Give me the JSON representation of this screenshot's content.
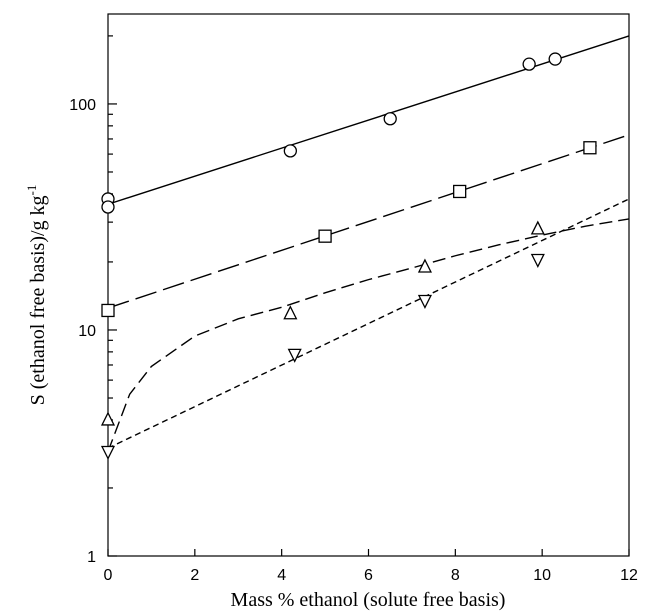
{
  "chart_data": {
    "type": "scatter",
    "title": "",
    "xlabel": "Mass % ethanol (solute free basis)",
    "ylabel": "S (ethanol free basis)/g kg",
    "ylabel_superscript": "-1",
    "xlim": [
      0,
      12
    ],
    "ylim": [
      1,
      250
    ],
    "yscale": "log",
    "grid": false,
    "legend": "none",
    "x_ticks": [
      "0",
      "2",
      "4",
      "6",
      "8",
      "10",
      "12"
    ],
    "y_ticks": [
      "1",
      "10",
      "100"
    ],
    "series": [
      {
        "marker": "circle",
        "line_style": "solid",
        "points": [
          [
            0,
            38
          ],
          [
            0,
            35
          ],
          [
            4.2,
            62
          ],
          [
            6.5,
            86
          ],
          [
            9.7,
            150
          ],
          [
            10.3,
            158
          ]
        ],
        "fit": [
          [
            0,
            36
          ],
          [
            12,
            200
          ]
        ]
      },
      {
        "marker": "square",
        "line_style": "long-dash",
        "points": [
          [
            0,
            12.2
          ],
          [
            5.0,
            26
          ],
          [
            8.1,
            41
          ],
          [
            11.1,
            64
          ]
        ],
        "fit": [
          [
            0,
            12.5
          ],
          [
            12,
            73
          ]
        ]
      },
      {
        "marker": "triangle-up",
        "line_style": "medium-dash",
        "points": [
          [
            0,
            4.0
          ],
          [
            4.2,
            11.8
          ],
          [
            7.3,
            19
          ],
          [
            9.9,
            28
          ]
        ],
        "fit": [
          [
            0,
            2.9
          ],
          [
            0.5,
            5.2
          ],
          [
            1,
            6.9
          ],
          [
            2,
            9.4
          ],
          [
            3,
            11.2
          ],
          [
            4,
            12.6
          ],
          [
            5,
            14.6
          ],
          [
            6,
            16.7
          ],
          [
            7,
            18.8
          ],
          [
            8,
            21.3
          ],
          [
            9,
            23.8
          ],
          [
            10,
            26.3
          ],
          [
            11,
            28.8
          ],
          [
            12,
            31
          ]
        ]
      },
      {
        "marker": "triangle-down",
        "line_style": "short-dash",
        "points": [
          [
            0,
            2.9
          ],
          [
            4.3,
            7.8
          ],
          [
            7.3,
            13.5
          ],
          [
            9.9,
            20.5
          ]
        ],
        "fit": [
          [
            0,
            3.0
          ],
          [
            12,
            38
          ]
        ]
      }
    ]
  }
}
